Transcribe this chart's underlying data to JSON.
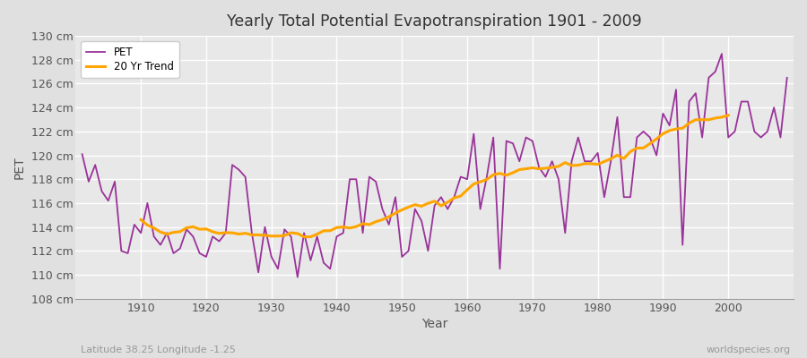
{
  "title": "Yearly Total Potential Evapotranspiration 1901 - 2009",
  "xlabel": "Year",
  "ylabel": "PET",
  "subtitle_left": "Latitude 38.25 Longitude -1.25",
  "subtitle_right": "worldspecies.org",
  "pet_color": "#993399",
  "trend_color": "#FFA500",
  "bg_color": "#E0E0E0",
  "plot_bg_color": "#E8E8E8",
  "grid_color": "#FFFFFF",
  "ylim": [
    108,
    130
  ],
  "ytick_step": 2,
  "years": [
    1901,
    1902,
    1903,
    1904,
    1905,
    1906,
    1907,
    1908,
    1909,
    1910,
    1911,
    1912,
    1913,
    1914,
    1915,
    1916,
    1917,
    1918,
    1919,
    1920,
    1921,
    1922,
    1923,
    1924,
    1925,
    1926,
    1927,
    1928,
    1929,
    1930,
    1931,
    1932,
    1933,
    1934,
    1935,
    1936,
    1937,
    1938,
    1939,
    1940,
    1941,
    1942,
    1943,
    1944,
    1945,
    1946,
    1947,
    1948,
    1949,
    1950,
    1951,
    1952,
    1953,
    1954,
    1955,
    1956,
    1957,
    1958,
    1959,
    1960,
    1961,
    1962,
    1963,
    1964,
    1965,
    1966,
    1967,
    1968,
    1969,
    1970,
    1971,
    1972,
    1973,
    1974,
    1975,
    1976,
    1977,
    1978,
    1979,
    1980,
    1981,
    1982,
    1983,
    1984,
    1985,
    1986,
    1987,
    1988,
    1989,
    1990,
    1991,
    1992,
    1993,
    1994,
    1995,
    1996,
    1997,
    1998,
    1999,
    2000,
    2001,
    2002,
    2003,
    2004,
    2005,
    2006,
    2007,
    2008,
    2009
  ],
  "pet_values": [
    120.1,
    117.8,
    119.2,
    117.0,
    116.2,
    117.8,
    112.0,
    111.8,
    114.2,
    113.5,
    116.0,
    113.2,
    112.5,
    113.5,
    111.8,
    112.2,
    113.8,
    113.2,
    111.8,
    111.5,
    113.2,
    112.8,
    113.5,
    119.2,
    118.8,
    118.2,
    113.5,
    110.2,
    114.0,
    111.5,
    110.5,
    113.8,
    113.2,
    109.8,
    113.5,
    111.2,
    113.2,
    111.0,
    110.5,
    113.2,
    113.5,
    118.0,
    118.0,
    113.5,
    118.2,
    117.8,
    115.5,
    114.2,
    116.5,
    111.5,
    112.0,
    115.5,
    114.5,
    112.0,
    115.8,
    116.5,
    115.5,
    116.5,
    118.2,
    118.0,
    121.8,
    115.5,
    118.2,
    121.5,
    110.5,
    121.2,
    121.0,
    119.5,
    121.5,
    121.2,
    119.0,
    118.2,
    119.5,
    118.0,
    113.5,
    119.5,
    121.5,
    119.5,
    119.5,
    120.2,
    116.5,
    119.5,
    123.2,
    116.5,
    116.5,
    121.5,
    122.0,
    121.5,
    120.0,
    123.5,
    122.5,
    125.5,
    112.5,
    124.5,
    125.2,
    121.5,
    126.5,
    127.0,
    128.5,
    121.5,
    122.0,
    124.5,
    124.5,
    122.0,
    121.5,
    122.0,
    124.0,
    121.5,
    126.5
  ]
}
